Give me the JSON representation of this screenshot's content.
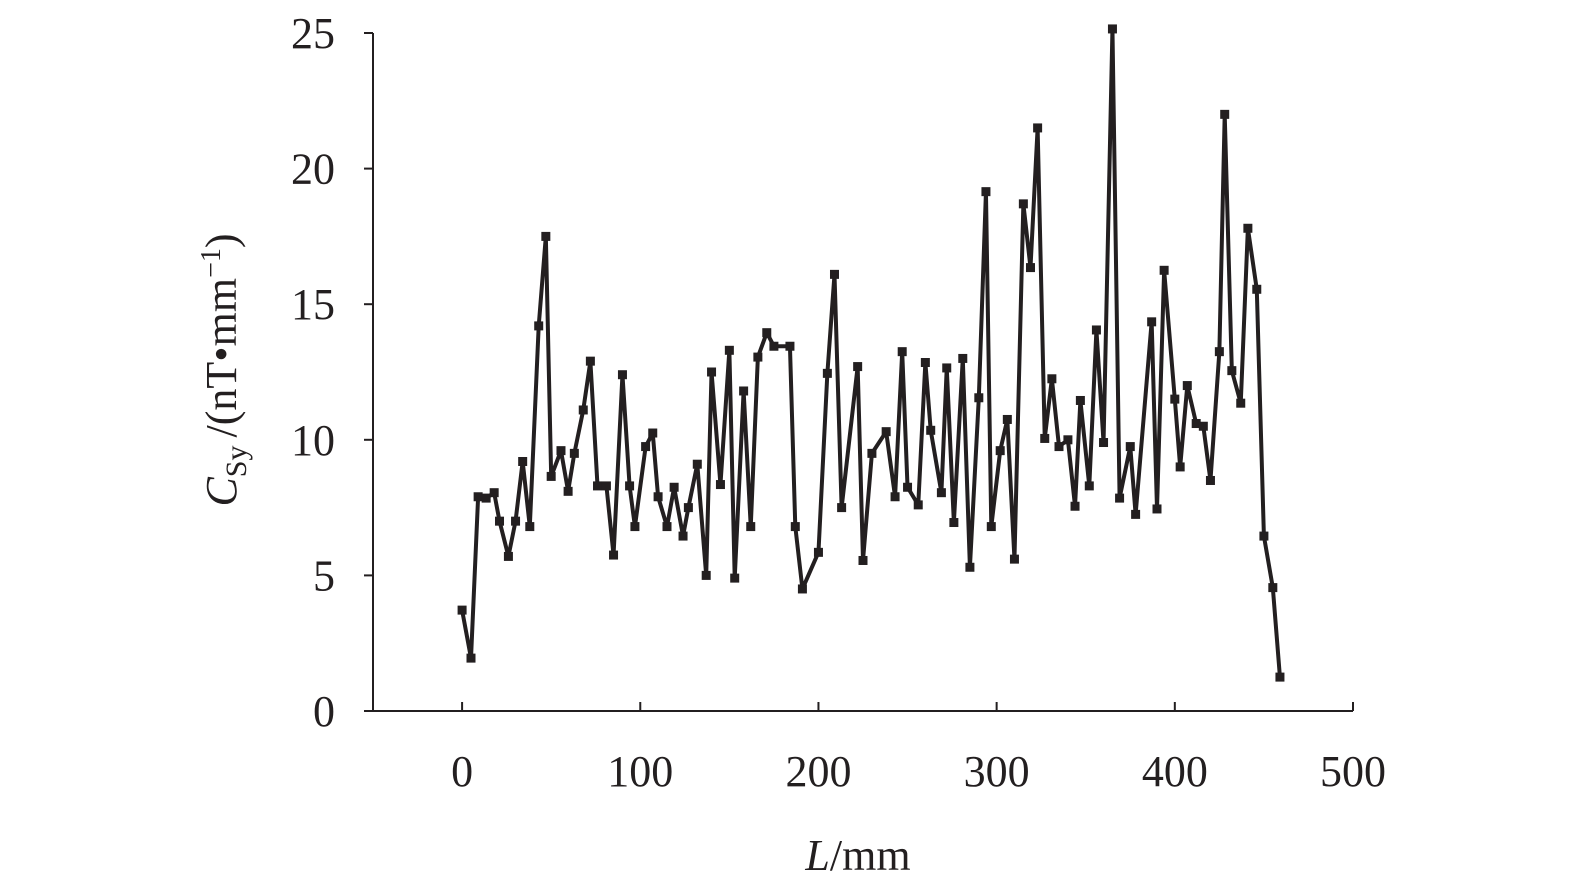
{
  "chart_data": {
    "type": "line",
    "xlabel": {
      "symbol": "L",
      "unit": "/mm"
    },
    "ylabel": {
      "symbol": "C",
      "subscript": "Sy",
      "unit": "/(nT•mm",
      "superscript": "−1",
      "close": ")"
    },
    "xlim": [
      -50,
      500
    ],
    "xticks": [
      0,
      100,
      200,
      300,
      400,
      500
    ],
    "ylim": [
      0,
      25
    ],
    "yticks": [
      0,
      5,
      10,
      15,
      20,
      25
    ],
    "series": [
      {
        "color": "#231f20",
        "x": [
          0,
          5,
          9,
          13.5,
          18,
          21,
          26,
          30,
          34,
          38,
          43,
          47,
          50,
          55.5,
          59.5,
          63,
          68,
          72,
          76,
          81,
          85,
          90,
          94,
          97,
          103,
          107,
          110,
          115,
          119,
          124,
          127,
          132,
          137,
          140,
          145,
          150,
          153,
          158,
          162,
          166,
          171,
          175,
          184,
          187,
          191,
          200,
          205,
          209,
          213,
          222,
          225,
          230,
          238,
          243,
          247,
          250,
          256,
          260,
          263,
          269,
          272,
          276,
          281,
          285,
          290,
          294,
          297,
          302,
          306,
          310,
          315,
          319,
          323,
          327,
          331,
          335,
          340,
          344,
          347,
          352,
          356,
          360,
          365,
          369,
          375,
          378,
          387,
          390,
          394,
          400,
          403,
          407,
          412,
          416,
          420,
          425,
          428,
          432,
          437,
          441,
          446,
          450,
          455,
          459
        ],
        "values": [
          3.72,
          1.95,
          7.9,
          7.85,
          8.05,
          7.0,
          5.7,
          7.0,
          9.2,
          6.8,
          14.2,
          17.5,
          8.65,
          9.6,
          8.1,
          9.5,
          11.1,
          12.9,
          8.3,
          8.3,
          5.75,
          12.4,
          8.3,
          6.8,
          9.75,
          10.25,
          7.9,
          6.8,
          8.25,
          6.45,
          7.5,
          9.1,
          5.0,
          12.5,
          8.35,
          13.3,
          4.9,
          11.8,
          6.8,
          13.05,
          13.95,
          13.45,
          13.45,
          6.8,
          4.5,
          5.85,
          12.45,
          16.1,
          7.5,
          12.7,
          5.55,
          9.5,
          10.3,
          7.9,
          13.25,
          8.25,
          7.6,
          12.85,
          10.35,
          8.05,
          12.65,
          6.95,
          13.0,
          5.3,
          11.55,
          19.15,
          6.8,
          9.6,
          10.75,
          5.6,
          18.7,
          16.35,
          21.5,
          10.05,
          12.25,
          9.75,
          10.0,
          7.55,
          11.45,
          8.3,
          14.05,
          9.9,
          25.15,
          7.85,
          9.75,
          7.25,
          14.35,
          7.45,
          16.25,
          11.5,
          9.0,
          12.0,
          10.6,
          10.5,
          8.5,
          13.25,
          22.0,
          12.55,
          11.35,
          17.8,
          15.55,
          6.45,
          4.55,
          1.25
        ]
      }
    ]
  }
}
